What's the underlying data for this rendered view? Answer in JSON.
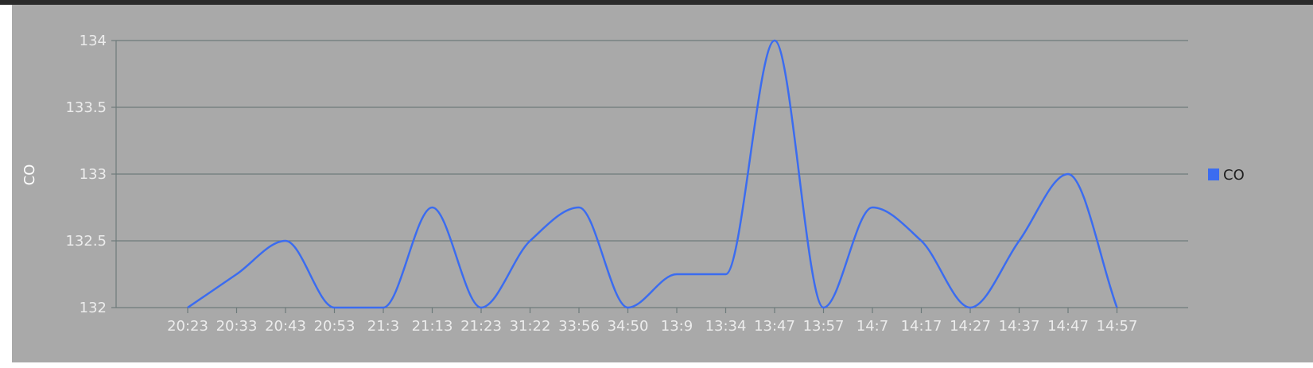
{
  "chart_data": {
    "type": "line",
    "ylabel": "CO",
    "xlabel": "",
    "title": "",
    "ylim": [
      132,
      134
    ],
    "yticks": [
      "132",
      "132.5",
      "133",
      "133.5",
      "134"
    ],
    "grid": true,
    "legend_position": "right",
    "categories": [
      "20:23",
      "20:33",
      "20:43",
      "20:53",
      "21:3",
      "21:13",
      "21:23",
      "31:22",
      "33:56",
      "34:50",
      "13:9",
      "13:34",
      "13:47",
      "13:57",
      "14:7",
      "14:17",
      "14:27",
      "14:37",
      "14:47",
      "14:57"
    ],
    "series": [
      {
        "name": "CO",
        "color": "#3b6cf0",
        "values": [
          132,
          132.25,
          132.5,
          132,
          132,
          132.75,
          132,
          132.5,
          132.75,
          132,
          132.25,
          132.25,
          134,
          132,
          132.75,
          132.5,
          132,
          132.5,
          133,
          132
        ]
      }
    ]
  }
}
